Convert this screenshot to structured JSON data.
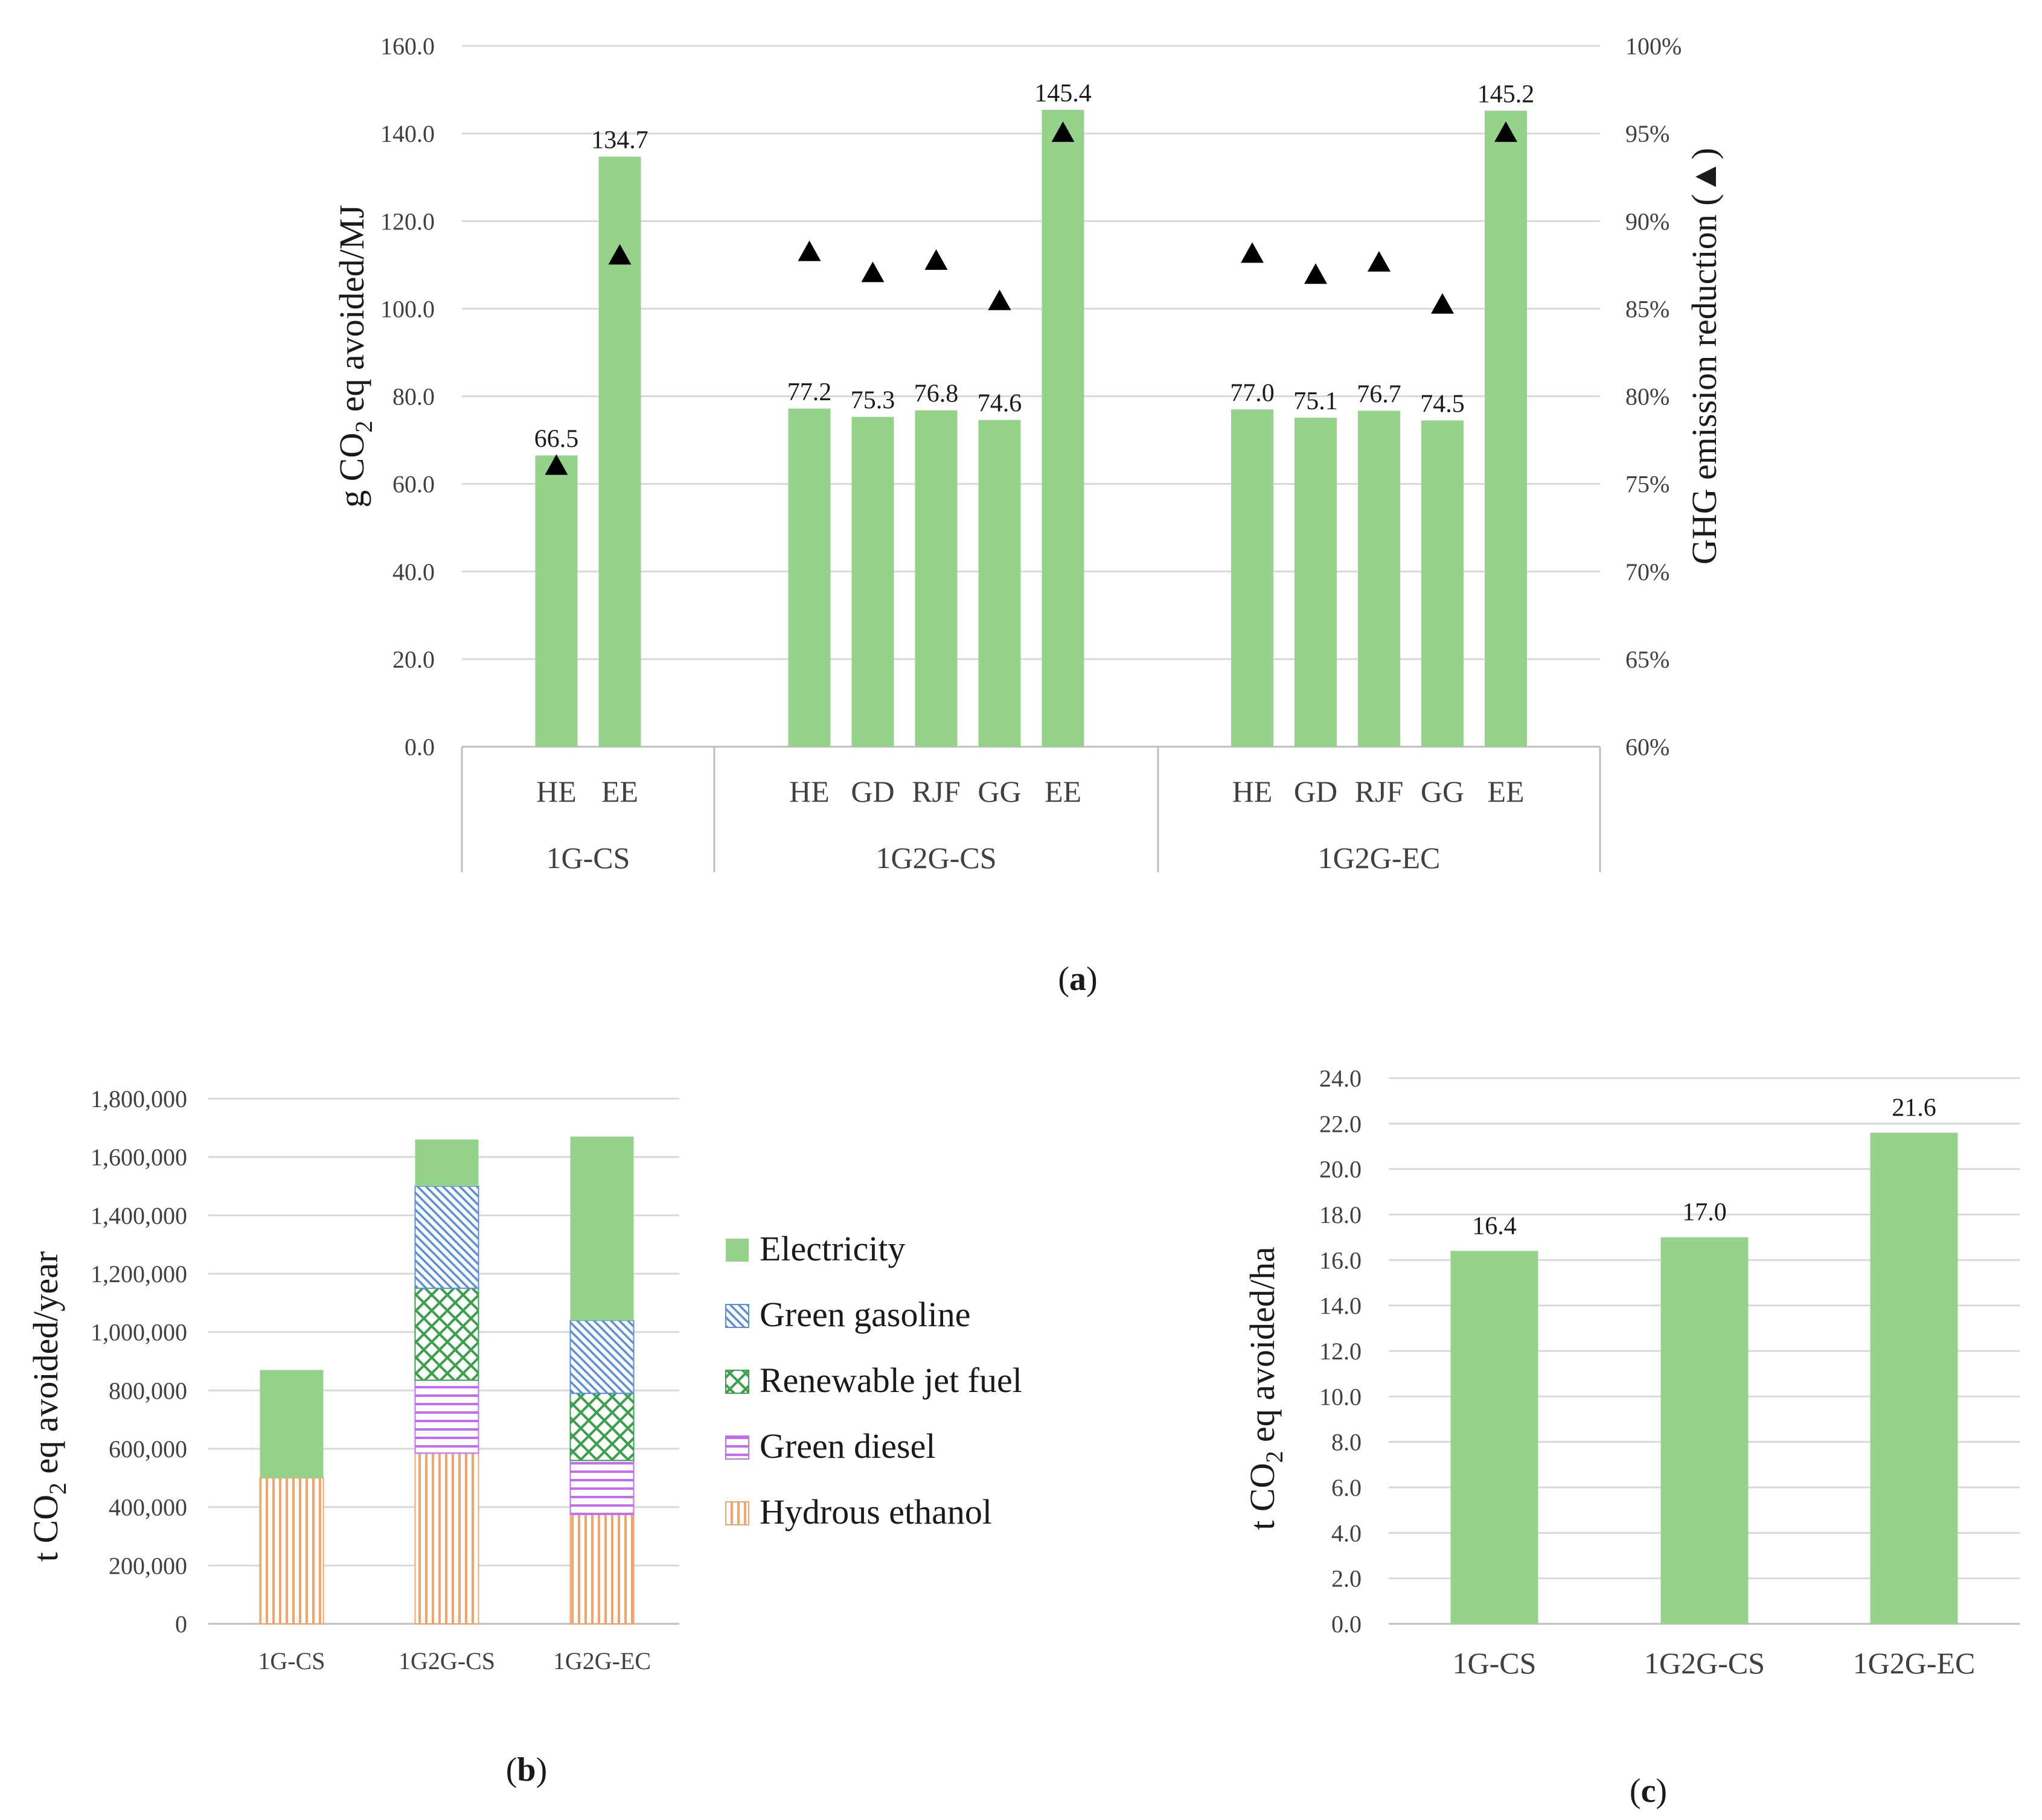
{
  "panel_labels": {
    "a": "a",
    "b": "b",
    "c": "c"
  },
  "chart_data": [
    {
      "id": "a",
      "type": "bar",
      "groups": [
        {
          "name": "1G-CS",
          "categories": [
            "HE",
            "EE"
          ],
          "values": [
            66.5,
            134.7
          ],
          "value_labels": [
            "66.5",
            "134.7"
          ],
          "reduction_pct": [
            76,
            88
          ]
        },
        {
          "name": "1G2G-CS",
          "categories": [
            "HE",
            "GD",
            "RJF",
            "GG",
            "EE"
          ],
          "values": [
            77.2,
            75.3,
            76.8,
            74.6,
            145.4
          ],
          "value_labels": [
            "77.2",
            "75.3",
            "76.8",
            "74.6",
            "145.4"
          ],
          "reduction_pct": [
            88.2,
            87.0,
            87.7,
            85.4,
            95
          ]
        },
        {
          "name": "1G2G-EC",
          "categories": [
            "HE",
            "GD",
            "RJF",
            "GG",
            "EE"
          ],
          "values": [
            77.0,
            75.1,
            76.7,
            74.5,
            145.2
          ],
          "value_labels": [
            "77.0",
            "75.1",
            "76.7",
            "74.5",
            "145.2"
          ],
          "reduction_pct": [
            88.1,
            86.9,
            87.6,
            85.2,
            95
          ]
        }
      ],
      "ylabel_main": "g CO",
      "ylabel_sub": "2",
      "ylabel_rest": " eq avoided/MJ",
      "y2label": "GHG emission reduction (▲)",
      "ylim": [
        0,
        160
      ],
      "yticks": [
        "0.0",
        "20.0",
        "40.0",
        "60.0",
        "80.0",
        "100.0",
        "120.0",
        "140.0",
        "160.0"
      ],
      "y2lim": [
        60,
        100
      ],
      "y2ticks": [
        "60%",
        "65%",
        "70%",
        "75%",
        "80%",
        "85%",
        "90%",
        "95%",
        "100%"
      ],
      "bar_color": "#95d38b",
      "marker": "▲"
    },
    {
      "id": "b",
      "type": "bar",
      "stacked": true,
      "categories": [
        "1G-CS",
        "1G2G-CS",
        "1G2G-EC"
      ],
      "series": [
        {
          "name": "Hydrous ethanol",
          "values": [
            500000,
            585000,
            375000
          ],
          "color": "#f4a46a",
          "pattern": "vertical"
        },
        {
          "name": "Green diesel",
          "values": [
            0,
            250000,
            185000
          ],
          "color": "#c46cf0",
          "pattern": "horizontal"
        },
        {
          "name": "Renewable jet fuel",
          "values": [
            0,
            315000,
            230000
          ],
          "color": "#3aa04a",
          "pattern": "lattice"
        },
        {
          "name": "Green gasoline",
          "values": [
            0,
            350000,
            250000
          ],
          "color": "#5b8fd9",
          "pattern": "diagonal"
        },
        {
          "name": "Electricity",
          "values": [
            370000,
            160000,
            630000
          ],
          "color": "#95d38b",
          "pattern": "solid"
        }
      ],
      "legend_order": [
        "Electricity",
        "Green gasoline",
        "Renewable jet fuel",
        "Green diesel",
        "Hydrous ethanol"
      ],
      "ylabel_main": "t CO",
      "ylabel_sub": "2",
      "ylabel_rest": " eq avoided/year",
      "ylim": [
        0,
        1800000
      ],
      "yticks": [
        "0",
        "200,000",
        "400,000",
        "600,000",
        "800,000",
        "1,000,000",
        "1,200,000",
        "1,400,000",
        "1,600,000",
        "1,800,000"
      ]
    },
    {
      "id": "c",
      "type": "bar",
      "categories": [
        "1G-CS",
        "1G2G-CS",
        "1G2G-EC"
      ],
      "values": [
        16.4,
        17.0,
        21.6
      ],
      "value_labels": [
        "16.4",
        "17.0",
        "21.6"
      ],
      "ylabel_main": "t CO",
      "ylabel_sub": "2",
      "ylabel_rest": " eq avoided/ha",
      "ylim": [
        0,
        24
      ],
      "yticks": [
        "0.0",
        "2.0",
        "4.0",
        "6.0",
        "8.0",
        "10.0",
        "12.0",
        "14.0",
        "16.0",
        "18.0",
        "20.0",
        "22.0",
        "24.0"
      ],
      "bar_color": "#95d38b"
    }
  ]
}
